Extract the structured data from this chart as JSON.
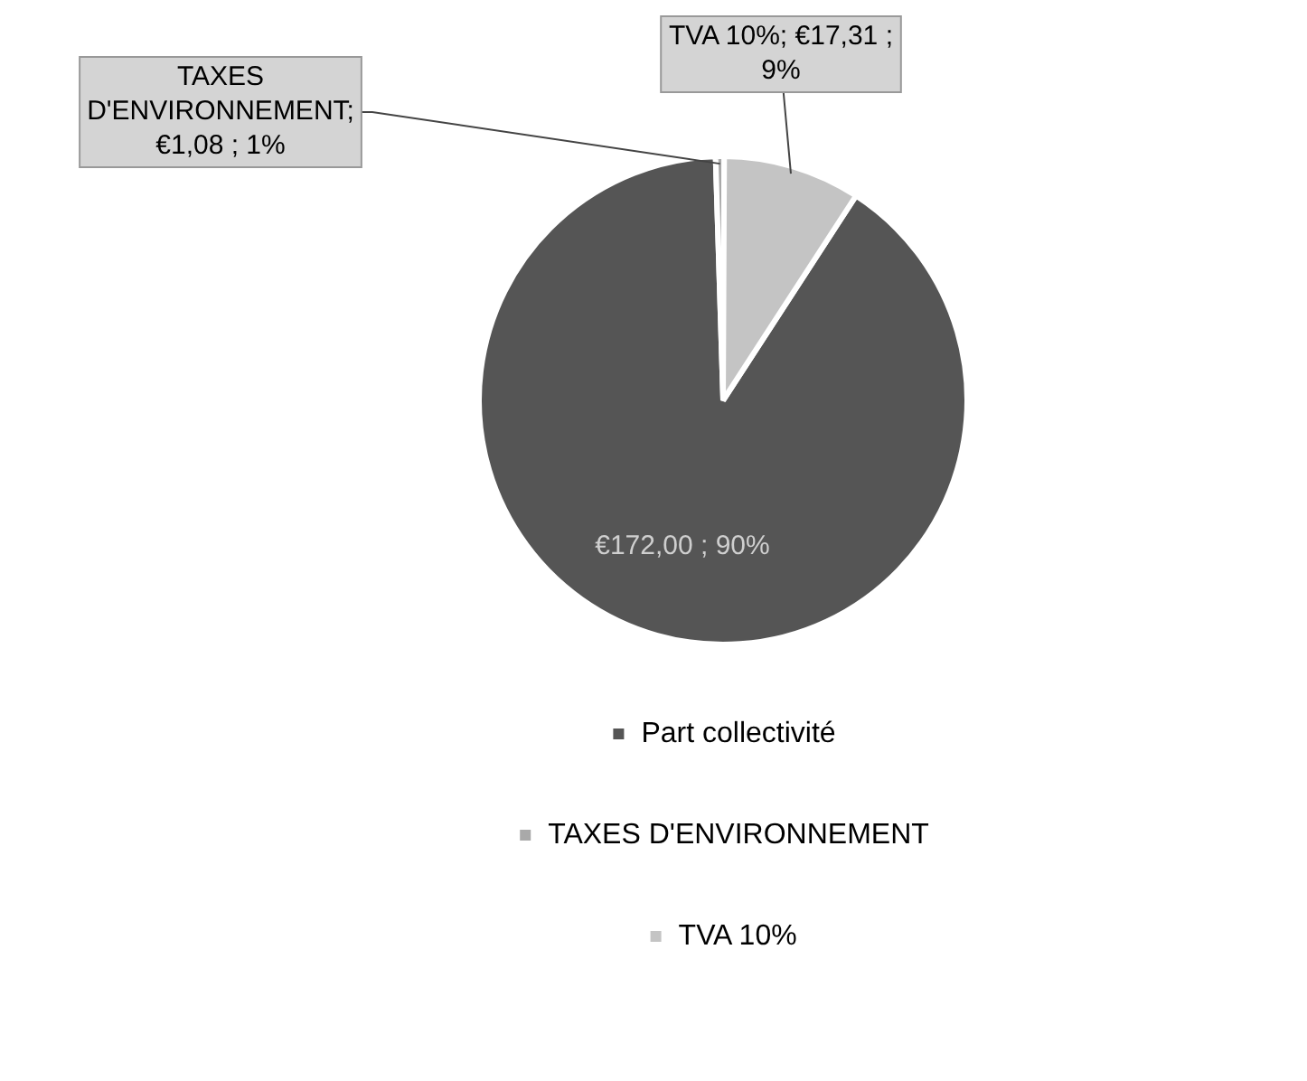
{
  "chart_data": {
    "type": "pie",
    "categories": [
      "Part collectivité",
      "TAXES D'ENVIRONNEMENT",
      "TVA 10%"
    ],
    "values": [
      172.0,
      1.08,
      17.31
    ],
    "colors": [
      "#555555",
      "#a9a9a9",
      "#c4c4c4"
    ],
    "value_labels": [
      "€172,00 ; 90%",
      "TAXES D'ENVIRONNEMENT; €1,08 ; 1%",
      "TVA 10%; €17,31 ; 9%"
    ],
    "legend": "bottom"
  }
}
